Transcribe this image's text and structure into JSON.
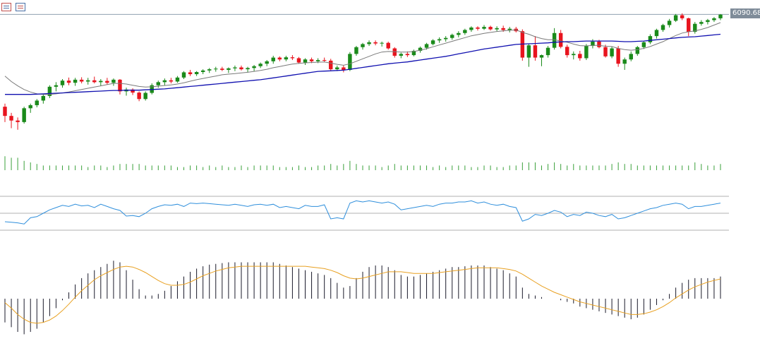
{
  "toolbar": {
    "icons": [
      "chart-list-icon",
      "chart-settings-icon"
    ]
  },
  "price_label": "6090.68",
  "colors": {
    "bull": "#1a8a1a",
    "bear": "#e8141e",
    "ma_fast": "#7a7a7a",
    "ma_slow": "#1010b0",
    "volume": "#3aa03a",
    "rsi": "#2f8fdc",
    "rsi_level": "#b0b0b0",
    "macd_hist": "#1a1a2a",
    "macd_signal": "#e8a020",
    "last_price_line": "#8fa0b0"
  },
  "chart_data": [
    {
      "type": "candlestick",
      "title": "",
      "ylim": [
        5650,
        6110
      ],
      "last_price": 6090.68,
      "ohlc": [
        [
          5790,
          5800,
          5740,
          5760
        ],
        [
          5760,
          5770,
          5720,
          5745
        ],
        [
          5745,
          5755,
          5715,
          5740
        ],
        [
          5740,
          5790,
          5735,
          5785
        ],
        [
          5785,
          5800,
          5770,
          5795
        ],
        [
          5795,
          5815,
          5788,
          5810
        ],
        [
          5810,
          5830,
          5800,
          5825
        ],
        [
          5825,
          5860,
          5818,
          5855
        ],
        [
          5855,
          5870,
          5840,
          5860
        ],
        [
          5860,
          5880,
          5852,
          5875
        ],
        [
          5875,
          5885,
          5860,
          5868
        ],
        [
          5868,
          5884,
          5858,
          5878
        ],
        [
          5878,
          5886,
          5866,
          5872
        ],
        [
          5872,
          5884,
          5862,
          5876
        ],
        [
          5876,
          5888,
          5866,
          5870
        ],
        [
          5870,
          5880,
          5858,
          5874
        ],
        [
          5874,
          5884,
          5862,
          5868
        ],
        [
          5868,
          5882,
          5858,
          5878
        ],
        [
          5878,
          5880,
          5830,
          5840
        ],
        [
          5840,
          5852,
          5826,
          5846
        ],
        [
          5846,
          5850,
          5828,
          5836
        ],
        [
          5836,
          5840,
          5808,
          5815
        ],
        [
          5815,
          5840,
          5810,
          5835
        ],
        [
          5835,
          5866,
          5830,
          5860
        ],
        [
          5860,
          5875,
          5852,
          5870
        ],
        [
          5870,
          5882,
          5860,
          5876
        ],
        [
          5876,
          5884,
          5866,
          5872
        ],
        [
          5872,
          5890,
          5868,
          5885
        ],
        [
          5885,
          5906,
          5880,
          5902
        ],
        [
          5902,
          5910,
          5890,
          5896
        ],
        [
          5896,
          5906,
          5890,
          5903
        ],
        [
          5903,
          5912,
          5896,
          5908
        ],
        [
          5908,
          5916,
          5900,
          5912
        ],
        [
          5912,
          5920,
          5904,
          5914
        ],
        [
          5914,
          5920,
          5906,
          5910
        ],
        [
          5910,
          5918,
          5900,
          5915
        ],
        [
          5915,
          5924,
          5906,
          5918
        ],
        [
          5918,
          5924,
          5908,
          5912
        ],
        [
          5912,
          5920,
          5902,
          5916
        ],
        [
          5916,
          5926,
          5906,
          5922
        ],
        [
          5922,
          5934,
          5916,
          5930
        ],
        [
          5930,
          5942,
          5922,
          5938
        ],
        [
          5938,
          5956,
          5930,
          5950
        ],
        [
          5950,
          5954,
          5938,
          5944
        ],
        [
          5944,
          5956,
          5938,
          5951
        ],
        [
          5951,
          5958,
          5942,
          5948
        ],
        [
          5948,
          5952,
          5930,
          5934
        ],
        [
          5934,
          5948,
          5926,
          5944
        ],
        [
          5944,
          5950,
          5932,
          5938
        ],
        [
          5938,
          5948,
          5932,
          5942
        ],
        [
          5942,
          5950,
          5935,
          5940
        ],
        [
          5940,
          5946,
          5908,
          5912
        ],
        [
          5912,
          5924,
          5906,
          5918
        ],
        [
          5918,
          5924,
          5902,
          5910
        ],
        [
          5910,
          5968,
          5906,
          5962
        ],
        [
          5962,
          5988,
          5956,
          5984
        ],
        [
          5984,
          5998,
          5976,
          5994
        ],
        [
          5994,
          6006,
          5988,
          6000
        ],
        [
          6000,
          6006,
          5990,
          5996
        ],
        [
          5996,
          6002,
          5986,
          5998
        ],
        [
          5998,
          6002,
          5976,
          5980
        ],
        [
          5980,
          5984,
          5950,
          5956
        ],
        [
          5956,
          5966,
          5948,
          5962
        ],
        [
          5962,
          5970,
          5952,
          5958
        ],
        [
          5958,
          5976,
          5954,
          5972
        ],
        [
          5972,
          5986,
          5966,
          5982
        ],
        [
          5982,
          5998,
          5976,
          5994
        ],
        [
          5994,
          6010,
          5990,
          6006
        ],
        [
          6006,
          6016,
          5998,
          6010
        ],
        [
          6010,
          6020,
          6002,
          6014
        ],
        [
          6014,
          6028,
          6008,
          6024
        ],
        [
          6024,
          6036,
          6016,
          6030
        ],
        [
          6030,
          6044,
          6024,
          6040
        ],
        [
          6040,
          6052,
          6034,
          6048
        ],
        [
          6048,
          6052,
          6038,
          6044
        ],
        [
          6044,
          6056,
          6040,
          6050
        ],
        [
          6050,
          6054,
          6038,
          6042
        ],
        [
          6042,
          6052,
          6036,
          6046
        ],
        [
          6046,
          6054,
          6034,
          6040
        ],
        [
          6040,
          6050,
          6032,
          6044
        ],
        [
          6044,
          6050,
          6032,
          6036
        ],
        [
          6036,
          6042,
          5940,
          5950
        ],
        [
          5950,
          5996,
          5920,
          5990
        ],
        [
          5990,
          6020,
          5940,
          5950
        ],
        [
          5950,
          5960,
          5922,
          5958
        ],
        [
          5958,
          5988,
          5950,
          5982
        ],
        [
          5982,
          6046,
          5976,
          6030
        ],
        [
          6030,
          6040,
          5980,
          5985
        ],
        [
          5985,
          5992,
          5950,
          5958
        ],
        [
          5958,
          5970,
          5944,
          5962
        ],
        [
          5962,
          5972,
          5940,
          5948
        ],
        [
          5948,
          5994,
          5942,
          5988
        ],
        [
          5988,
          6010,
          5980,
          6002
        ],
        [
          6002,
          6008,
          5980,
          5984
        ],
        [
          5984,
          5992,
          5950,
          5954
        ],
        [
          5954,
          5986,
          5948,
          5980
        ],
        [
          5980,
          5988,
          5920,
          5930
        ],
        [
          5930,
          5950,
          5910,
          5944
        ],
        [
          5944,
          5970,
          5938,
          5962
        ],
        [
          5962,
          5988,
          5956,
          5984
        ],
        [
          5984,
          6004,
          5978,
          6000
        ],
        [
          6000,
          6026,
          5994,
          6020
        ],
        [
          6020,
          6044,
          6012,
          6040
        ],
        [
          6040,
          6060,
          6034,
          6056
        ],
        [
          6056,
          6076,
          6048,
          6070
        ],
        [
          6070,
          6092,
          6066,
          6088
        ],
        [
          6088,
          6094,
          6072,
          6078
        ],
        [
          6078,
          6080,
          6020,
          6034
        ],
        [
          6034,
          6066,
          6028,
          6060
        ],
        [
          6060,
          6072,
          6054,
          6066
        ],
        [
          6066,
          6076,
          6058,
          6072
        ],
        [
          6072,
          6082,
          6066,
          6078
        ],
        [
          6078,
          6092,
          6072,
          6090
        ]
      ],
      "ma_fast": [
        5890,
        5872,
        5858,
        5846,
        5838,
        5832,
        5830,
        5830,
        5832,
        5835,
        5838,
        5842,
        5846,
        5850,
        5854,
        5858,
        5862,
        5866,
        5866,
        5864,
        5860,
        5856,
        5854,
        5855,
        5857,
        5859,
        5861,
        5864,
        5868,
        5873,
        5878,
        5882,
        5886,
        5890,
        5894,
        5896,
        5898,
        5900,
        5902,
        5905,
        5908,
        5912,
        5917,
        5921,
        5925,
        5929,
        5931,
        5933,
        5934,
        5935,
        5936,
        5932,
        5928,
        5925,
        5930,
        5938,
        5946,
        5954,
        5962,
        5968,
        5970,
        5969,
        5968,
        5968,
        5970,
        5974,
        5979,
        5985,
        5991,
        5997,
        6003,
        6009,
        6015,
        6021,
        6025,
        6029,
        6032,
        6035,
        6037,
        6039,
        6040,
        6032,
        6026,
        6018,
        6012,
        6008,
        6008,
        6004,
        6000,
        5994,
        5989,
        5988,
        5990,
        5990,
        5987,
        5986,
        5980,
        5976,
        5974,
        5976,
        5980,
        5986,
        5994,
        6002,
        6012,
        6022,
        6030,
        6034,
        6037,
        6042,
        6048,
        6056,
        6064
      ],
      "ma_slow": [
        5830,
        5830,
        5830,
        5830,
        5830,
        5831,
        5832,
        5833,
        5834,
        5835,
        5836,
        5837,
        5838,
        5839,
        5840,
        5841,
        5842,
        5843,
        5843,
        5844,
        5844,
        5844,
        5845,
        5846,
        5847,
        5848,
        5850,
        5852,
        5854,
        5856,
        5858,
        5860,
        5862,
        5864,
        5866,
        5868,
        5870,
        5872,
        5874,
        5876,
        5878,
        5881,
        5884,
        5887,
        5890,
        5893,
        5896,
        5899,
        5902,
        5905,
        5906,
        5907,
        5908,
        5909,
        5912,
        5915,
        5918,
        5921,
        5924,
        5927,
        5930,
        5932,
        5934,
        5936,
        5939,
        5942,
        5945,
        5948,
        5951,
        5954,
        5958,
        5962,
        5966,
        5970,
        5974,
        5978,
        5981,
        5984,
        5987,
        5990,
        5993,
        5994,
        5995,
        5996,
        5997,
        5998,
        6000,
        6001,
        6002,
        6002,
        6003,
        6004,
        6004,
        6004,
        6004,
        6004,
        6003,
        6002,
        6002,
        6003,
        6004,
        6006,
        6008,
        6010,
        6012,
        6014,
        6016,
        6017,
        6018,
        6020,
        6022,
        6024,
        6026
      ]
    },
    {
      "type": "bar",
      "title": "",
      "values": [
        9,
        8,
        8,
        6,
        5,
        4,
        3,
        3,
        3,
        3,
        3,
        3,
        3,
        2,
        3,
        3,
        2,
        3,
        4,
        4,
        4,
        4,
        3,
        3,
        3,
        3,
        3,
        2,
        2,
        3,
        3,
        2,
        3,
        2,
        3,
        2,
        2,
        3,
        2,
        3,
        3,
        3,
        3,
        2,
        2,
        2,
        3,
        2,
        2,
        3,
        3,
        4,
        3,
        4,
        6,
        4,
        3,
        3,
        3,
        2,
        3,
        4,
        3,
        3,
        3,
        3,
        3,
        2,
        3,
        2,
        3,
        3,
        3,
        2,
        2,
        3,
        3,
        2,
        2,
        3,
        3,
        5,
        5,
        5,
        3,
        4,
        5,
        4,
        3,
        4,
        3,
        3,
        3,
        3,
        3,
        4,
        5,
        4,
        4,
        3,
        3,
        3,
        3,
        3,
        3,
        3,
        3,
        3,
        5,
        4,
        3,
        3,
        4
      ]
    },
    {
      "type": "line",
      "title": "",
      "ylim": [
        20,
        80
      ],
      "levels": [
        70,
        30
      ],
      "values": [
        35,
        34,
        33,
        31,
        42,
        44,
        50,
        56,
        60,
        64,
        62,
        66,
        63,
        64,
        60,
        66,
        62,
        58,
        55,
        45,
        46,
        44,
        50,
        58,
        62,
        65,
        64,
        66,
        62,
        68,
        67,
        68,
        67,
        66,
        65,
        64,
        66,
        64,
        62,
        65,
        66,
        64,
        66,
        60,
        62,
        60,
        58,
        64,
        62,
        62,
        65,
        40,
        42,
        40,
        68,
        72,
        70,
        72,
        70,
        68,
        70,
        66,
        56,
        58,
        60,
        62,
        64,
        62,
        66,
        68,
        68,
        70,
        70,
        72,
        68,
        70,
        66,
        64,
        66,
        62,
        60,
        36,
        40,
        48,
        46,
        50,
        55,
        52,
        44,
        48,
        46,
        52,
        50,
        46,
        44,
        48,
        40,
        42,
        46,
        50,
        54,
        58,
        60,
        64,
        66,
        68,
        66,
        58,
        62,
        62,
        64,
        66,
        68
      ]
    },
    {
      "type": "bar",
      "title": "",
      "ylim": [
        -60,
        60
      ],
      "values": [
        -30,
        -36,
        -42,
        -45,
        -42,
        -38,
        -30,
        -22,
        -12,
        -2,
        8,
        18,
        26,
        32,
        36,
        40,
        44,
        48,
        46,
        36,
        24,
        12,
        4,
        4,
        6,
        10,
        16,
        22,
        28,
        34,
        38,
        41,
        43,
        44,
        45,
        46,
        46,
        46,
        46,
        46,
        46,
        46,
        46,
        44,
        42,
        40,
        38,
        36,
        34,
        32,
        30,
        26,
        20,
        14,
        16,
        26,
        34,
        40,
        42,
        42,
        40,
        36,
        30,
        28,
        28,
        30,
        32,
        34,
        36,
        38,
        40,
        40,
        41,
        42,
        42,
        42,
        40,
        38,
        36,
        32,
        28,
        14,
        6,
        4,
        2,
        0,
        0,
        -2,
        -4,
        -6,
        -10,
        -12,
        -14,
        -16,
        -18,
        -20,
        -22,
        -24,
        -26,
        -24,
        -20,
        -14,
        -8,
        -2,
        6,
        14,
        20,
        24,
        26,
        26,
        26,
        26,
        28
      ],
      "signal": [
        -5,
        -12,
        -20,
        -26,
        -30,
        -31,
        -30,
        -27,
        -22,
        -15,
        -7,
        2,
        10,
        17,
        24,
        29,
        33,
        37,
        40,
        41,
        40,
        37,
        33,
        28,
        23,
        19,
        17,
        17,
        18,
        21,
        25,
        29,
        32,
        35,
        37,
        39,
        40,
        41,
        41,
        41,
        41,
        41,
        41,
        41,
        41,
        41,
        41,
        41,
        40,
        39,
        38,
        36,
        33,
        29,
        26,
        25,
        26,
        28,
        30,
        32,
        34,
        34,
        34,
        33,
        32,
        32,
        32,
        32,
        33,
        34,
        35,
        36,
        37,
        38,
        39,
        39,
        39,
        39,
        38,
        37,
        35,
        31,
        26,
        21,
        16,
        12,
        8,
        5,
        2,
        -1,
        -4,
        -6,
        -8,
        -10,
        -12,
        -14,
        -16,
        -18,
        -20,
        -20,
        -19,
        -17,
        -14,
        -10,
        -5,
        1,
        6,
        11,
        15,
        18,
        21,
        23,
        25
      ]
    }
  ]
}
